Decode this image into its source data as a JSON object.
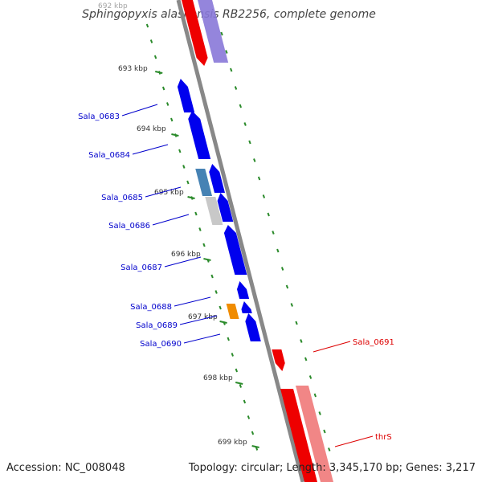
{
  "title": "Sphingopyxis alaskensis RB2256, complete genome",
  "footer": {
    "accession": "Accession: NC_008048",
    "stats": "Topology: circular; Length: 3,345,170 bp; Genes: 3,217"
  },
  "colors": {
    "forward_gene": "#0000ee",
    "reverse_gene": "#ee0000",
    "reverse_rna": "#f08080",
    "lavender_gene": "#8878d8",
    "steel_gene": "#4682b4",
    "grey_gene": "#c8c8c8",
    "orange_gene": "#f08c00",
    "tick": "#2a8a2a",
    "backbone": "#888888",
    "forward_label": "#0000cc",
    "reverse_label": "#dd0000"
  },
  "kbp_labels": [
    "692 kbp",
    "693 kbp",
    "694 kbp",
    "695 kbp",
    "696 kbp",
    "697 kbp",
    "698 kbp",
    "699 kbp"
  ],
  "labels_forward": [
    "Sala_0683",
    "Sala_0684",
    "Sala_0685",
    "Sala_0686",
    "Sala_0687",
    "Sala_0688",
    "Sala_0689",
    "Sala_0690"
  ],
  "labels_reverse": [
    "Sala_0691",
    "thrS"
  ]
}
